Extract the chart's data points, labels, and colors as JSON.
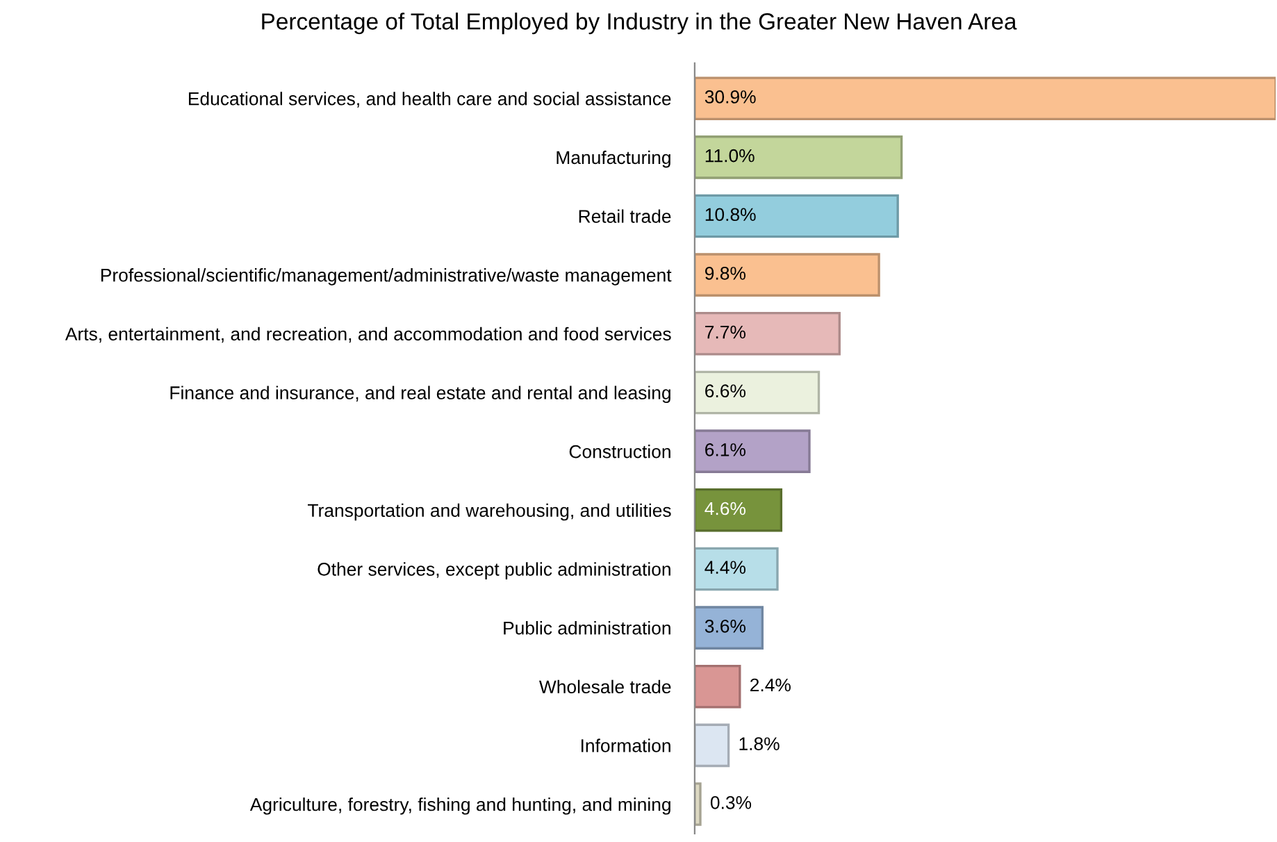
{
  "chart_data": {
    "type": "bar",
    "orientation": "horizontal",
    "title": "Percentage of Total Employed by Industry in the Greater New Haven Area",
    "categories": [
      "Educational services, and health care and social assistance",
      "Manufacturing",
      "Retail trade",
      "Professional/scientific/management/administrative/waste management",
      "Arts, entertainment, and recreation, and accommodation and food services",
      "Finance and insurance, and real estate and rental and leasing",
      "Construction",
      "Transportation and warehousing, and utilities",
      "Other services, except public administration",
      "Public administration",
      "Wholesale trade",
      "Information",
      "Agriculture, forestry, fishing and hunting, and mining"
    ],
    "values": [
      30.9,
      11.0,
      10.8,
      9.8,
      7.7,
      6.6,
      6.1,
      4.6,
      4.4,
      3.6,
      2.4,
      1.8,
      0.3
    ],
    "value_labels": [
      "30.9%",
      "11.0%",
      "10.8%",
      "9.8%",
      "7.7%",
      "6.6%",
      "6.1%",
      "4.6%",
      "4.4%",
      "3.6%",
      "2.4%",
      "1.8%",
      "0.3%"
    ],
    "colors": [
      "#fac090",
      "#c3d69b",
      "#93cddd",
      "#fac090",
      "#e6b9b8",
      "#ebf1de",
      "#b3a2c7",
      "#77933c",
      "#b7dee8",
      "#95b3d7",
      "#d99694",
      "#dce6f2",
      "#ddd9c3"
    ],
    "tick_labels": "y"
  }
}
